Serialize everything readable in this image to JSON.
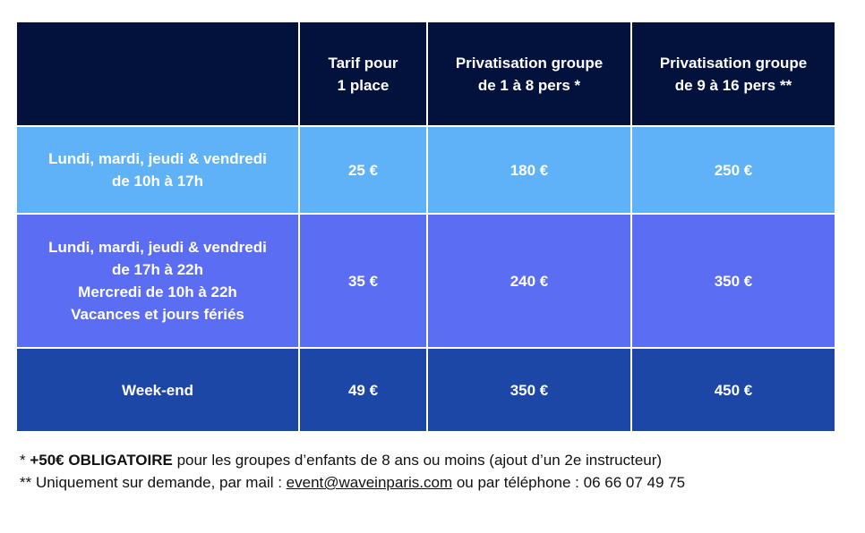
{
  "table": {
    "headers": {
      "corner": "",
      "single": [
        "Tarif pour",
        "1 place"
      ],
      "group_1_8": [
        "Privatisation groupe",
        "de 1 à 8 pers *"
      ],
      "group_9_16": [
        "Privatisation groupe",
        "de 9 à 16 pers **"
      ]
    },
    "rows": [
      {
        "label": [
          "Lundi, mardi, jeudi & vendredi",
          "de 10h à 17h"
        ],
        "single": "25 €",
        "group_1_8": "180 €",
        "group_9_16": "250 €",
        "color": "#5fb2f8"
      },
      {
        "label": [
          "Lundi, mardi, jeudi & vendredi",
          "de 17h à 22h",
          "Mercredi de 10h à 22h",
          "Vacances et jours fériés"
        ],
        "single": "35 €",
        "group_1_8": "240 €",
        "group_9_16": "350 €",
        "color": "#5b6ef3"
      },
      {
        "label": [
          "Week-end"
        ],
        "single": "49 €",
        "group_1_8": "350 €",
        "group_9_16": "450 €",
        "color": "#1d47a6"
      }
    ],
    "header_color": "#02123d"
  },
  "footnotes": {
    "note1_prefix": "* ",
    "note1_bold": "+50€ OBLIGATOIRE",
    "note1_rest": " pour les groupes d’enfants de 8 ans ou moins (ajout d’un 2e instructeur)",
    "note2_prefix": "** Uniquement sur demande, par mail : ",
    "note2_email": "event@waveinparis.com",
    "note2_rest": " ou par téléphone : 06 66 07 49 75"
  }
}
